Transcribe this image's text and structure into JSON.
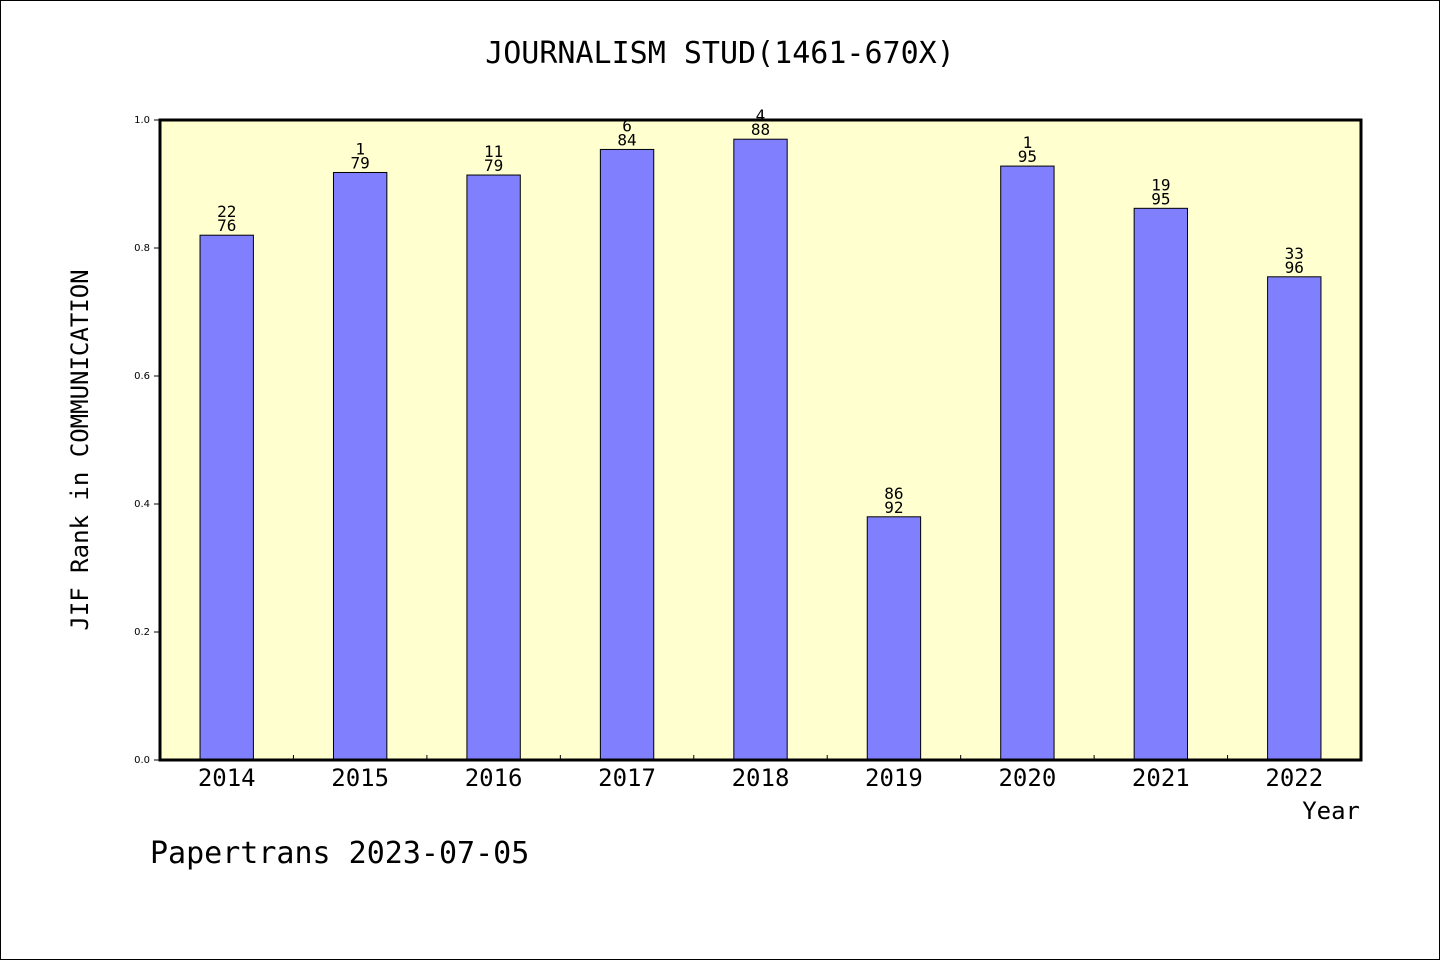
{
  "chart_data": {
    "type": "bar",
    "title": "JOURNALISM STUD(1461-670X)",
    "xlabel": "Year",
    "ylabel": "JIF Rank in COMMUNICATION",
    "ylim": [
      0,
      1.0
    ],
    "yticks": [
      "0.0",
      "0.2",
      "0.4",
      "0.6",
      "0.8",
      "1.0"
    ],
    "categories": [
      "2014",
      "2015",
      "2016",
      "2017",
      "2018",
      "2019",
      "2020",
      "2021",
      "2022"
    ],
    "values": [
      0.82,
      0.918,
      0.914,
      0.954,
      0.97,
      0.38,
      0.928,
      0.862,
      0.755
    ],
    "annotations": [
      [
        "22",
        "76"
      ],
      [
        "1",
        "79"
      ],
      [
        "11",
        "79"
      ],
      [
        "6",
        "84"
      ],
      [
        "4",
        "88"
      ],
      [
        "86",
        "92"
      ],
      [
        "1",
        "95"
      ],
      [
        "19",
        "95"
      ],
      [
        "33",
        "96"
      ]
    ],
    "grid": false,
    "colors": {
      "plot_background": "#ffffd0",
      "bar_fill": "#8080ff",
      "bar_stroke": "#000000"
    }
  },
  "footer": "Papertrans 2023-07-05"
}
